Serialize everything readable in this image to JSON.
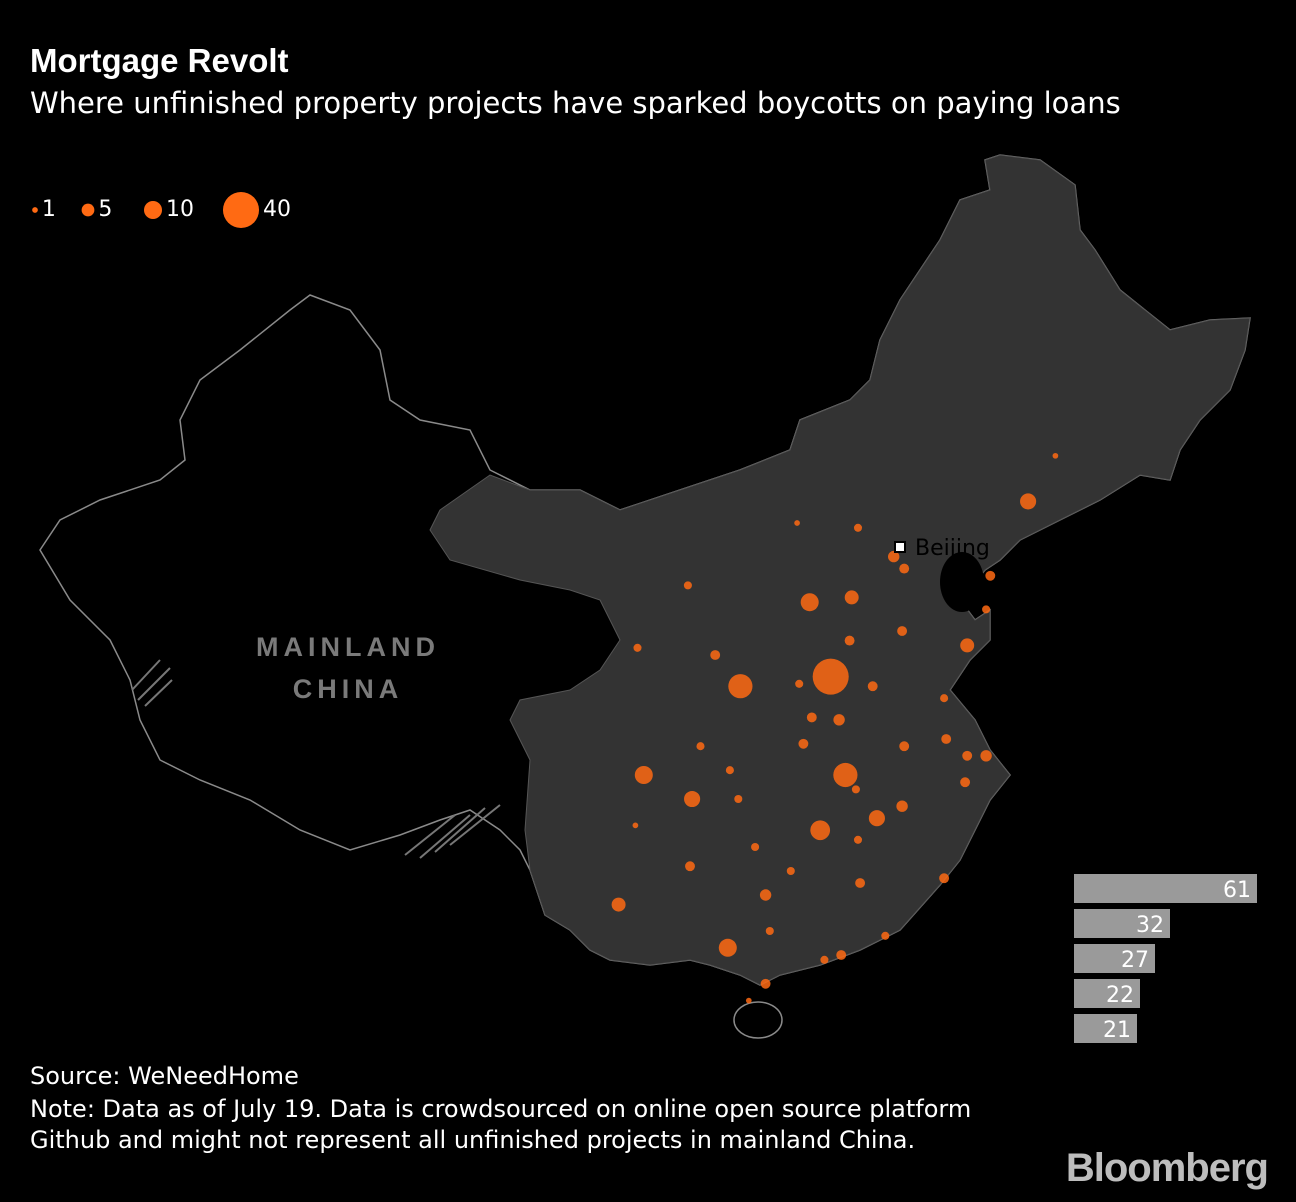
{
  "header": {
    "title": "Mortgage Revolt",
    "subtitle": "Where unfinished property projects have sparked boycotts on paying loans"
  },
  "legend": {
    "values": [
      1,
      5,
      10,
      40
    ]
  },
  "map": {
    "label": "MAINLAND CHINA",
    "city": {
      "name": "Beijing",
      "lon": 116.4,
      "lat": 39.9
    },
    "points": [
      {
        "lon": 113.1,
        "lat": 34.5,
        "value": 40
      },
      {
        "lon": 113.8,
        "lat": 30.4,
        "value": 18
      },
      {
        "lon": 112.6,
        "lat": 28.1,
        "value": 12
      },
      {
        "lon": 108.8,
        "lat": 34.1,
        "value": 18
      },
      {
        "lon": 112.1,
        "lat": 37.6,
        "value": 10
      },
      {
        "lon": 104.2,
        "lat": 30.4,
        "value": 10
      },
      {
        "lon": 108.2,
        "lat": 23.2,
        "value": 10
      },
      {
        "lon": 115.3,
        "lat": 28.6,
        "value": 8
      },
      {
        "lon": 122.5,
        "lat": 41.8,
        "value": 8
      },
      {
        "lon": 114.1,
        "lat": 37.8,
        "value": 6
      },
      {
        "lon": 106.5,
        "lat": 29.4,
        "value": 8
      },
      {
        "lon": 103.0,
        "lat": 25.0,
        "value": 6
      },
      {
        "lon": 119.6,
        "lat": 35.8,
        "value": 6
      },
      {
        "lon": 110.0,
        "lat": 25.4,
        "value": 4
      },
      {
        "lon": 113.5,
        "lat": 32.7,
        "value": 4
      },
      {
        "lon": 116.5,
        "lat": 29.1,
        "value": 4
      },
      {
        "lon": 116.1,
        "lat": 39.5,
        "value": 4
      },
      {
        "lon": 116.6,
        "lat": 39.0,
        "value": 3
      },
      {
        "lon": 114.0,
        "lat": 36.0,
        "value": 3
      },
      {
        "lon": 116.5,
        "lat": 36.4,
        "value": 3
      },
      {
        "lon": 115.1,
        "lat": 34.1,
        "value": 3
      },
      {
        "lon": 116.6,
        "lat": 31.6,
        "value": 3
      },
      {
        "lon": 114.5,
        "lat": 25.9,
        "value": 3
      },
      {
        "lon": 113.6,
        "lat": 22.9,
        "value": 3
      },
      {
        "lon": 120.5,
        "lat": 31.2,
        "value": 4
      },
      {
        "lon": 119.6,
        "lat": 31.2,
        "value": 3
      },
      {
        "lon": 118.6,
        "lat": 31.9,
        "value": 3
      },
      {
        "lon": 119.5,
        "lat": 30.1,
        "value": 3
      },
      {
        "lon": 118.5,
        "lat": 26.1,
        "value": 3
      },
      {
        "lon": 110.0,
        "lat": 21.7,
        "value": 3
      },
      {
        "lon": 111.6,
        "lat": 34.2,
        "value": 2
      },
      {
        "lon": 112.2,
        "lat": 32.8,
        "value": 3
      },
      {
        "lon": 111.8,
        "lat": 31.7,
        "value": 3
      },
      {
        "lon": 108.3,
        "lat": 30.6,
        "value": 2
      },
      {
        "lon": 106.9,
        "lat": 31.6,
        "value": 2
      },
      {
        "lon": 107.6,
        "lat": 35.4,
        "value": 3
      },
      {
        "lon": 103.9,
        "lat": 35.7,
        "value": 2
      },
      {
        "lon": 106.3,
        "lat": 38.3,
        "value": 2
      },
      {
        "lon": 111.5,
        "lat": 40.9,
        "value": 1
      },
      {
        "lon": 114.4,
        "lat": 40.7,
        "value": 2
      },
      {
        "lon": 123.8,
        "lat": 43.7,
        "value": 1
      },
      {
        "lon": 120.7,
        "lat": 38.7,
        "value": 3
      },
      {
        "lon": 120.5,
        "lat": 37.3,
        "value": 2
      },
      {
        "lon": 109.5,
        "lat": 27.4,
        "value": 2
      },
      {
        "lon": 111.2,
        "lat": 26.4,
        "value": 2
      },
      {
        "lon": 106.4,
        "lat": 26.6,
        "value": 3
      },
      {
        "lon": 103.8,
        "lat": 28.3,
        "value": 1
      },
      {
        "lon": 109.2,
        "lat": 21.0,
        "value": 1
      },
      {
        "lon": 112.8,
        "lat": 22.7,
        "value": 2
      },
      {
        "lon": 114.4,
        "lat": 27.7,
        "value": 2
      },
      {
        "lon": 115.7,
        "lat": 23.7,
        "value": 2
      },
      {
        "lon": 118.5,
        "lat": 33.6,
        "value": 2
      },
      {
        "lon": 108.7,
        "lat": 29.4,
        "value": 2
      },
      {
        "lon": 114.3,
        "lat": 29.8,
        "value": 2
      },
      {
        "lon": 110.2,
        "lat": 23.9,
        "value": 2
      }
    ]
  },
  "bars": {
    "values": [
      61,
      32,
      27,
      22,
      21
    ],
    "xlim": [
      0,
      61
    ]
  },
  "footer": {
    "source": "Source: WeNeedHome",
    "note": "Note: Data as of July 19. Data is crowdsourced on online open source platform Github and might not represent all unfinished projects in mainland China."
  },
  "logo": "Bloomberg"
}
